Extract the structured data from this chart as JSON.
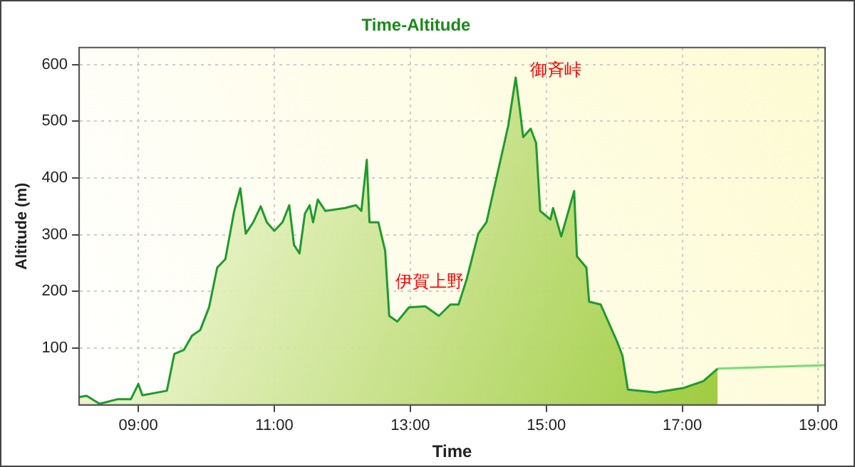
{
  "chart_data": {
    "type": "area",
    "title": "Time-Altitude",
    "xlabel": "Time",
    "ylabel": "Altitude (m)",
    "xlim": [
      8.13,
      19.1
    ],
    "ylim": [
      0,
      630
    ],
    "xticks": [
      {
        "value": 9,
        "label": "09:00"
      },
      {
        "value": 11,
        "label": "11:00"
      },
      {
        "value": 13,
        "label": "13:00"
      },
      {
        "value": 15,
        "label": "15:00"
      },
      {
        "value": 17,
        "label": "17:00"
      },
      {
        "value": 19,
        "label": "19:00"
      }
    ],
    "yticks": [
      100,
      200,
      300,
      400,
      500,
      600
    ],
    "grid": true,
    "legend": false,
    "marker": "none",
    "line_style": "solid",
    "series": [
      {
        "color": "#1e9a2e",
        "x": [
          8.13,
          8.24,
          8.32,
          8.43,
          8.69,
          8.89,
          9.0,
          9.06,
          9.42,
          9.53,
          9.67,
          9.79,
          9.91,
          10.04,
          10.16,
          10.28,
          10.41,
          10.5,
          10.58,
          10.69,
          10.8,
          10.89,
          11.0,
          11.12,
          11.22,
          11.29,
          11.37,
          11.45,
          11.52,
          11.57,
          11.64,
          11.75,
          12.04,
          12.2,
          12.28,
          12.36,
          12.4,
          12.53,
          12.63,
          12.69,
          12.81,
          12.98,
          13.22,
          13.42,
          13.59,
          13.71,
          13.83,
          14.0,
          14.12,
          14.44,
          14.55,
          14.61,
          14.66,
          14.77,
          14.85,
          14.91,
          15.06,
          15.1,
          15.22,
          15.41,
          15.45,
          15.59,
          15.63,
          15.8,
          16.04,
          16.12,
          16.2,
          16.61,
          17.02,
          17.31,
          17.52
        ],
        "values": [
          14,
          16,
          10,
          2,
          10,
          10,
          37,
          17,
          25,
          90,
          97,
          122,
          132,
          172,
          242,
          257,
          342,
          382,
          302,
          322,
          350,
          322,
          307,
          322,
          352,
          282,
          267,
          337,
          352,
          322,
          362,
          342,
          347,
          352,
          342,
          432,
          322,
          322,
          272,
          157,
          147,
          172,
          174,
          157,
          177,
          177,
          222,
          302,
          322,
          492,
          577,
          522,
          472,
          487,
          462,
          342,
          327,
          347,
          297,
          377,
          262,
          242,
          182,
          177,
          112,
          87,
          27,
          22,
          30,
          42,
          64
        ]
      },
      {
        "type": "line",
        "color": "#77dd77",
        "x": [
          17.52,
          19.1
        ],
        "values": [
          64,
          70
        ]
      }
    ],
    "annotations": [
      {
        "text": "伊賀上野",
        "x": 13.22,
        "y": 174
      },
      {
        "text": "御斉峠",
        "x": 14.55,
        "y": 577
      }
    ]
  }
}
